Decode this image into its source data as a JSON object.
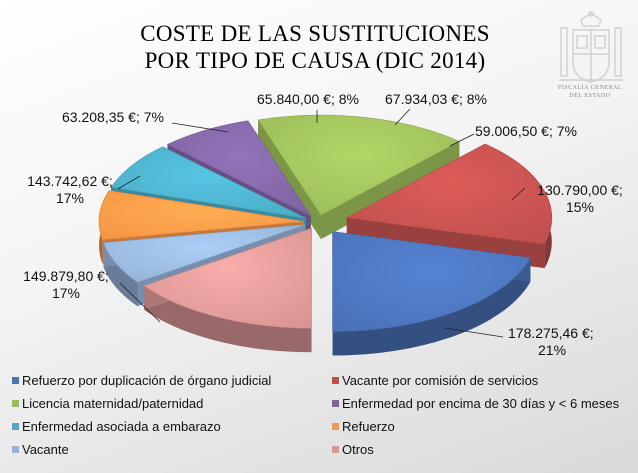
{
  "header": {
    "title_line1": "COSTE DE LAS SUSTITUCIONES",
    "title_line2": "POR TIPO DE CAUSA (DIC 2014)"
  },
  "logo": {
    "text_line1": "FISCALÍA GENERAL",
    "text_line2": "DEL ESTADO"
  },
  "chart_data": {
    "type": "pie",
    "title": "COSTE DE LAS SUSTITUCIONES POR TIPO DE CAUSA (DIC 2014)",
    "legend_position": "bottom",
    "slices": [
      {
        "name": "Refuerzo por duplicación de órgano judicial",
        "value": 178275.46,
        "percent": 21,
        "label_value": "178.275,46 €;",
        "label_percent": "21%",
        "color": "#4a72b8"
      },
      {
        "name": "Vacante por comisión de servicios",
        "value": 149879.8,
        "percent": 17,
        "label_value": "149.879,80 €;",
        "label_percent": "17%",
        "color": "#c0504d"
      },
      {
        "name": "Licencia maternidad/paternidad",
        "value": 143742.62,
        "percent": 17,
        "label_value": "143.742,62 €;",
        "label_percent": "17%",
        "color": "#9bbb59"
      },
      {
        "name": "Enfermedad por encima de 30 días y < 6 meses",
        "value": 63208.35,
        "percent": 7,
        "label_value": "63.208,35 €;",
        "label_percent": "7%",
        "color": "#8064a2"
      },
      {
        "name": "Enfermedad asociada a embarazo",
        "value": 65840.0,
        "percent": 8,
        "label_value": "65.840,00 €;",
        "label_percent": "8%",
        "color": "#4bacc6"
      },
      {
        "name": "Refuerzo",
        "value": 67934.03,
        "percent": 8,
        "label_value": "67.934,03 €;",
        "label_percent": "8%",
        "color": "#f79646"
      },
      {
        "name": "Vacante",
        "value": 59006.5,
        "percent": 7,
        "label_value": "59.006,50 €;",
        "label_percent": "7%",
        "color": "#95b3d7"
      },
      {
        "name": "Otros",
        "value": 130790.0,
        "percent": 15,
        "label_value": "130.790,00 €;",
        "label_percent": "15%",
        "color": "#d99694"
      }
    ]
  }
}
